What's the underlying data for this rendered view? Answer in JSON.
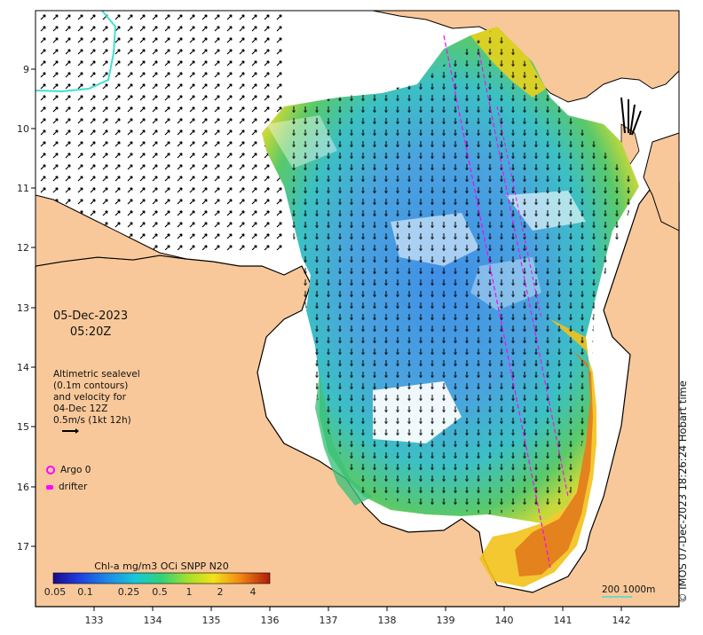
{
  "map": {
    "date": "05-Dec-2023",
    "time": "05:20Z",
    "legend_lines": [
      "Altimetric sealevel",
      "(0.1m contours)",
      "and velocity for",
      "04-Dec 12Z",
      "0.5m/s (1kt 12h)"
    ],
    "argo_label": "Argo 0",
    "drifter_label": "drifter",
    "colorbar_title": "Chl-a mg/m3 OCi SNPP N20",
    "colorbar_ticks": [
      "0.05",
      "0.1",
      "0.25",
      "0.5",
      "1",
      "2",
      "4"
    ],
    "scale_label": "200  1000m",
    "credit": "© IMOS 07-Dec-2023 18:26:24 Hobart time",
    "lon_ticks": [
      "133",
      "134",
      "135",
      "136",
      "137",
      "138",
      "139",
      "140",
      "141",
      "142"
    ],
    "lat_ticks": [
      "9",
      "10",
      "11",
      "12",
      "13",
      "14",
      "15",
      "16",
      "17"
    ],
    "colors": {
      "land": "#f8c89a",
      "ocean_blank": "#ffffff",
      "track": "#ff00ff",
      "bathy_200": "#40e0d0"
    }
  }
}
